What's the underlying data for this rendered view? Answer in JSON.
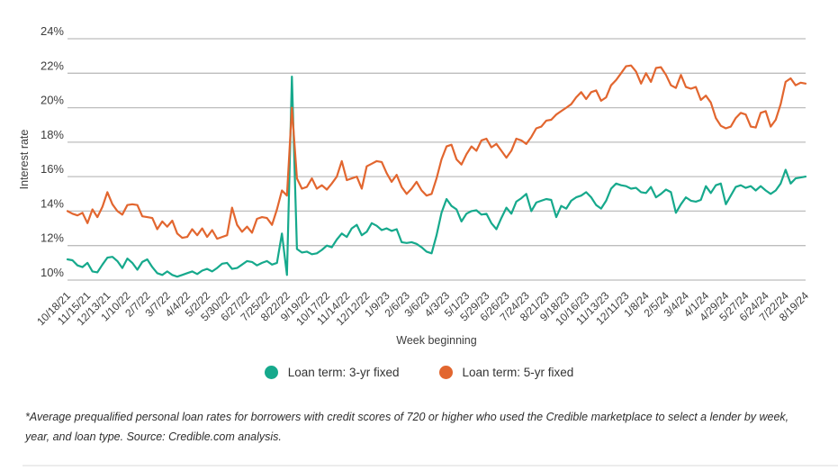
{
  "chart_data": {
    "type": "line",
    "title": "",
    "xlabel": "Week beginning",
    "ylabel": "Interest rate",
    "ylim": [
      10,
      24
    ],
    "y_tick_step_pct": 2,
    "y_ticks": [
      "24%",
      "22%",
      "20%",
      "18%",
      "16%",
      "14%",
      "12%",
      "10%"
    ],
    "grid": true,
    "legend_position": "bottom",
    "x_tick_interval_weeks": 4,
    "x_tick_labels": [
      "10/18/21",
      "11/15/21",
      "12/13/21",
      "1/10/22",
      "2/7/22",
      "3/7/22",
      "4/4/22",
      "5/2/22",
      "5/30/22",
      "6/27/22",
      "7/25/22",
      "8/22/22",
      "9/19/22",
      "10/17/22",
      "11/14/22",
      "12/12/22",
      "1/9/23",
      "2/6/23",
      "3/6/23",
      "4/3/23",
      "5/1/23",
      "5/29/23",
      "6/26/23",
      "7/24/23",
      "8/21/23",
      "9/18/23",
      "10/16/23",
      "11/13/23",
      "12/11/23",
      "1/8/24",
      "2/5/24",
      "3/4/24",
      "4/1/24",
      "4/29/24",
      "5/27/24",
      "6/24/24",
      "7/22/24",
      "8/19/24"
    ],
    "series": [
      {
        "name": "Loan term: 3-yr fixed",
        "color": "#16a98c",
        "values": [
          11.2,
          11.15,
          10.85,
          10.75,
          11.0,
          10.5,
          10.45,
          10.9,
          11.3,
          11.35,
          11.1,
          10.7,
          11.25,
          11.0,
          10.6,
          11.05,
          11.2,
          10.75,
          10.4,
          10.3,
          10.5,
          10.3,
          10.2,
          10.3,
          10.4,
          10.5,
          10.35,
          10.55,
          10.65,
          10.5,
          10.7,
          10.95,
          11.0,
          10.65,
          10.7,
          10.9,
          11.1,
          11.05,
          10.85,
          11.0,
          11.1,
          10.9,
          11.0,
          12.7,
          10.3,
          21.8,
          11.8,
          11.6,
          11.65,
          11.5,
          11.55,
          11.75,
          12.0,
          11.9,
          12.35,
          12.7,
          12.5,
          13.0,
          13.2,
          12.6,
          12.8,
          13.3,
          13.15,
          12.9,
          13.0,
          12.85,
          12.95,
          12.2,
          12.15,
          12.2,
          12.1,
          11.9,
          11.65,
          11.55,
          12.6,
          13.9,
          14.7,
          14.3,
          14.1,
          13.4,
          13.85,
          14.0,
          14.05,
          13.8,
          13.85,
          13.3,
          12.95,
          13.6,
          14.2,
          13.85,
          14.55,
          14.75,
          15.0,
          14.0,
          14.5,
          14.6,
          14.7,
          14.65,
          13.65,
          14.3,
          14.15,
          14.6,
          14.8,
          14.9,
          15.1,
          14.8,
          14.35,
          14.15,
          14.6,
          15.3,
          15.6,
          15.5,
          15.45,
          15.3,
          15.35,
          15.1,
          15.05,
          15.4,
          14.8,
          15.0,
          15.25,
          15.1,
          13.9,
          14.4,
          14.8,
          14.6,
          14.55,
          14.65,
          15.45,
          15.05,
          15.5,
          15.6,
          14.4,
          14.9,
          15.4,
          15.5,
          15.35,
          15.45,
          15.2,
          15.45,
          15.2,
          15.0,
          15.2,
          15.6,
          16.4,
          15.6,
          15.9,
          15.95,
          16.0
        ]
      },
      {
        "name": "Loan term: 5-yr fixed",
        "color": "#e2662f",
        "values": [
          14.0,
          13.85,
          13.75,
          13.9,
          13.3,
          14.1,
          13.65,
          14.25,
          15.1,
          14.4,
          14.0,
          13.8,
          14.35,
          14.4,
          14.35,
          13.7,
          13.65,
          13.6,
          12.95,
          13.4,
          13.1,
          13.45,
          12.7,
          12.45,
          12.5,
          12.95,
          12.6,
          13.0,
          12.5,
          12.9,
          12.4,
          12.5,
          12.6,
          14.2,
          13.2,
          12.8,
          13.1,
          12.75,
          13.55,
          13.65,
          13.6,
          13.2,
          14.1,
          15.2,
          14.9,
          20.0,
          15.9,
          15.3,
          15.4,
          15.9,
          15.3,
          15.5,
          15.25,
          15.6,
          16.0,
          16.9,
          15.8,
          15.9,
          16.0,
          15.3,
          16.6,
          16.75,
          16.9,
          16.85,
          16.2,
          15.7,
          16.1,
          15.4,
          15.0,
          15.3,
          15.7,
          15.2,
          14.9,
          15.0,
          15.9,
          17.0,
          17.75,
          17.85,
          17.0,
          16.7,
          17.3,
          17.75,
          17.5,
          18.1,
          18.2,
          17.7,
          17.9,
          17.5,
          17.1,
          17.5,
          18.2,
          18.1,
          17.9,
          18.3,
          18.8,
          18.9,
          19.25,
          19.3,
          19.6,
          19.8,
          20.0,
          20.2,
          20.6,
          20.9,
          20.5,
          20.9,
          21.0,
          20.4,
          20.6,
          21.3,
          21.6,
          22.0,
          22.4,
          22.45,
          22.1,
          21.4,
          22.0,
          21.5,
          22.3,
          22.35,
          21.9,
          21.3,
          21.15,
          21.9,
          21.2,
          21.1,
          21.2,
          20.45,
          20.7,
          20.3,
          19.4,
          18.95,
          18.8,
          18.9,
          19.4,
          19.7,
          19.6,
          18.9,
          18.85,
          19.7,
          19.8,
          18.9,
          19.3,
          20.2,
          21.5,
          21.7,
          21.3,
          21.45,
          21.4
        ]
      }
    ],
    "grid_color": "#bdbdbd",
    "axis_text_color": "#3d3d3d"
  },
  "footnote": "*Average prequalified personal loan rates for borrowers with credit scores of 720 or higher who used the Credible marketplace to select a lender by week, year, and loan type. Source: Credible.com analysis."
}
